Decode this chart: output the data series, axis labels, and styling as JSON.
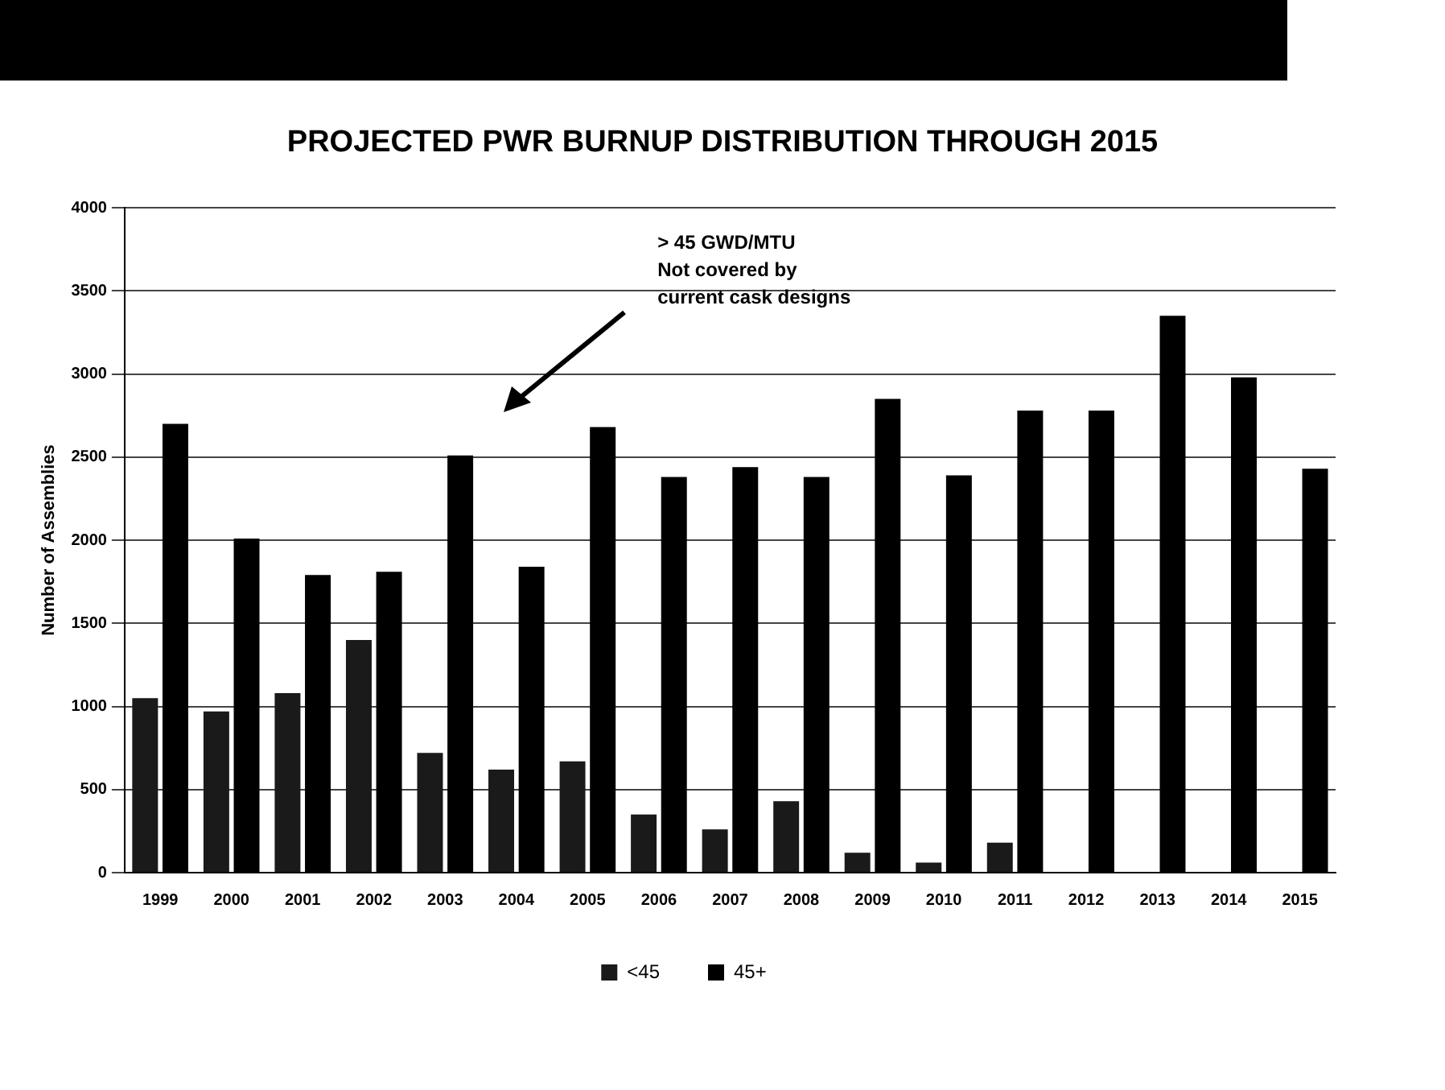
{
  "chart_data": {
    "type": "bar",
    "title": "PROJECTED PWR BURNUP DISTRIBUTION THROUGH 2015",
    "ylabel": "Number of Assemblies",
    "categories": [
      "1999",
      "2000",
      "2001",
      "2002",
      "2003",
      "2004",
      "2005",
      "2006",
      "2007",
      "2008",
      "2009",
      "2010",
      "2011",
      "2012",
      "2013",
      "2014",
      "2015"
    ],
    "series": [
      {
        "name": "<45",
        "color": "#1a1a1a",
        "values": [
          1050,
          970,
          1080,
          1400,
          720,
          620,
          670,
          350,
          260,
          430,
          120,
          60,
          180,
          0,
          0,
          0,
          0
        ]
      },
      {
        "name": "45+",
        "color": "#000000",
        "values": [
          2700,
          2010,
          1790,
          1810,
          2510,
          1840,
          2680,
          2380,
          2440,
          2380,
          2850,
          2390,
          2780,
          2780,
          3350,
          2980,
          2430
        ]
      }
    ],
    "ylim": [
      0,
      4000
    ],
    "yticks": [
      0,
      500,
      1000,
      1500,
      2000,
      2500,
      3000,
      3500,
      4000
    ],
    "grid": "y",
    "legend": "bottom",
    "annotations": [
      "> 45 GWD/MTU\nNot covered by\ncurrent cask designs"
    ]
  }
}
